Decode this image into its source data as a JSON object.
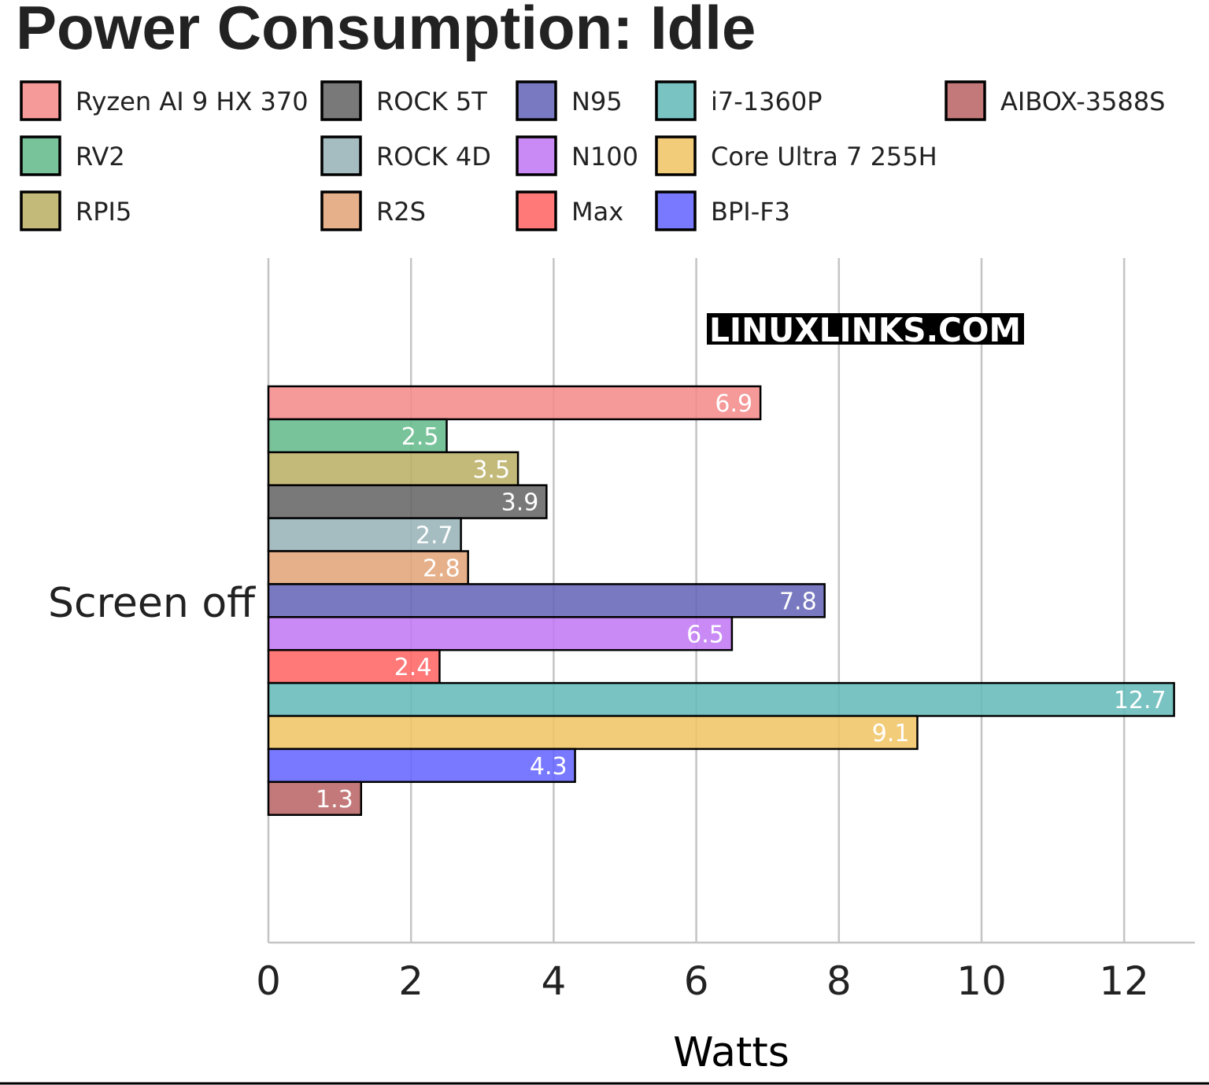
{
  "chart_data": {
    "type": "bar",
    "orientation": "horizontal",
    "title": "Power Consumption: Idle",
    "categories": [
      "Screen off"
    ],
    "xlabel": "Watts",
    "ylabel": "",
    "xlim": [
      0,
      13
    ],
    "xticks": [
      0,
      2,
      4,
      6,
      8,
      10,
      12
    ],
    "grid": true,
    "legend_position": "top",
    "watermark": "LINUXLINKS.COM",
    "series": [
      {
        "name": "Ryzen AI 9 HX 370",
        "values": [
          6.9
        ],
        "color": "#F48B8B"
      },
      {
        "name": "RV2",
        "values": [
          2.5
        ],
        "color": "#66BB8C"
      },
      {
        "name": "RPI5",
        "values": [
          3.5
        ],
        "color": "#BBAF66"
      },
      {
        "name": "ROCK 5T",
        "values": [
          3.9
        ],
        "color": "#666666"
      },
      {
        "name": "ROCK 4D",
        "values": [
          2.7
        ],
        "color": "#99B4B8"
      },
      {
        "name": "R2S",
        "values": [
          2.8
        ],
        "color": "#E3A57A"
      },
      {
        "name": "N95",
        "values": [
          7.8
        ],
        "color": "#6666B8"
      },
      {
        "name": "N100",
        "values": [
          6.5
        ],
        "color": "#C27AF4"
      },
      {
        "name": "Max",
        "values": [
          2.4
        ],
        "color": "#FF6666"
      },
      {
        "name": "i7-1360P",
        "values": [
          12.7
        ],
        "color": "#66BBBB"
      },
      {
        "name": "Core Ultra 7 255H",
        "values": [
          9.1
        ],
        "color": "#F0C566"
      },
      {
        "name": "BPI-F3",
        "values": [
          4.3
        ],
        "color": "#6666FF"
      },
      {
        "name": "AIBOX-3588S",
        "values": [
          1.3
        ],
        "color": "#BB6666"
      }
    ]
  }
}
